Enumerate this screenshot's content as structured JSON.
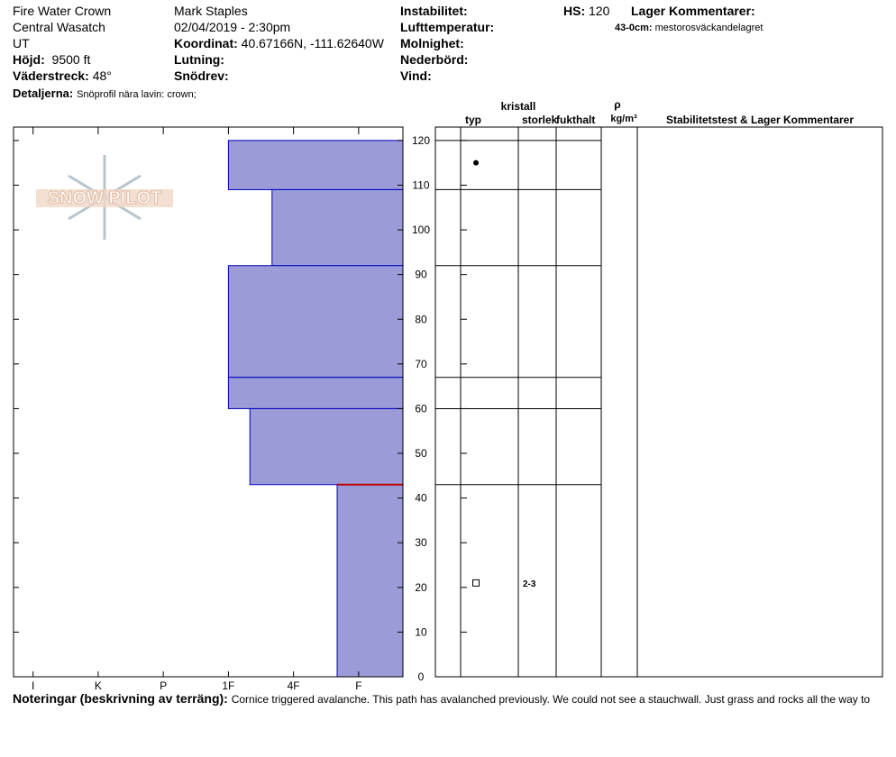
{
  "header": {
    "location": "Fire Water Crown",
    "range": "Central Wasatch",
    "state": "UT",
    "elevation_label": "Höjd:",
    "elevation": "9500 ft",
    "aspect_label": "Väderstreck:",
    "aspect": "48°",
    "observer": "Mark Staples",
    "datetime": "02/04/2019 - 2:30pm",
    "coord_label": "Koordinat:",
    "coord": "40.67166N, -111.62640W",
    "slope_label": "Lutning:",
    "wind_loading_label": "Snödrev:",
    "instability_label": "Instabilitet:",
    "air_temp_label": "Lufttemperatur:",
    "sky_label": "Molnighet:",
    "precip_label": "Nederbörd:",
    "wind_label": "Vind:",
    "hs_label": "HS:",
    "hs": "120",
    "layer_comments_label": "Lager Kommentarer:",
    "layer_comment_range": "43-0cm:",
    "layer_comment": "mestorosväckandelagret",
    "details_label": "Detaljerna:",
    "details": "Snöprofil nära lavin: crown;"
  },
  "logo": "SNOW PILOT",
  "table_headers": {
    "crystal": "kristall",
    "type": "typ",
    "size": "storlek",
    "moisture": "fukthalt",
    "rho": "ρ",
    "density_unit": "kg/m³",
    "stability": "Stabilitetstest & Lager Kommentarer"
  },
  "notes": {
    "label": "Noteringar (beskrivning av terräng):",
    "text": "Cornice triggered avalanche. This path has avalanched previously. We could not see a stauchwall. Just grass and rocks all the way to"
  },
  "chart_data": {
    "type": "snow-profile",
    "color": "#9b9bd7",
    "edge_color": "#0000c0",
    "xlim": [
      6.3,
      0.32
    ],
    "xticks": [
      {
        "value": 6,
        "label": "I"
      },
      {
        "value": 5,
        "label": "K"
      },
      {
        "value": 4,
        "label": "P"
      },
      {
        "value": 3,
        "label": "1F"
      },
      {
        "value": 2,
        "label": "4F"
      },
      {
        "value": 1,
        "label": "F"
      }
    ],
    "ylim": [
      0,
      123
    ],
    "yticks": [
      0,
      10,
      20,
      30,
      40,
      50,
      60,
      70,
      80,
      90,
      100,
      110,
      120
    ],
    "layers": [
      {
        "top": 120,
        "bottom": 109,
        "hardness": 3
      },
      {
        "top": 109,
        "bottom": 92,
        "hardness": 2.33
      },
      {
        "top": 92,
        "bottom": 67,
        "hardness": 3
      },
      {
        "top": 67,
        "bottom": 60,
        "hardness": 3
      },
      {
        "top": 60,
        "bottom": 43,
        "hardness": 2.67
      },
      {
        "top": 43,
        "bottom": 0,
        "hardness": 1.33
      }
    ],
    "concern": {
      "depth": 43,
      "color": "#c00000"
    },
    "grains": [
      {
        "depth": 115,
        "shape": "dot"
      },
      {
        "depth": 21,
        "shape": "square",
        "size": "2-3"
      }
    ]
  }
}
